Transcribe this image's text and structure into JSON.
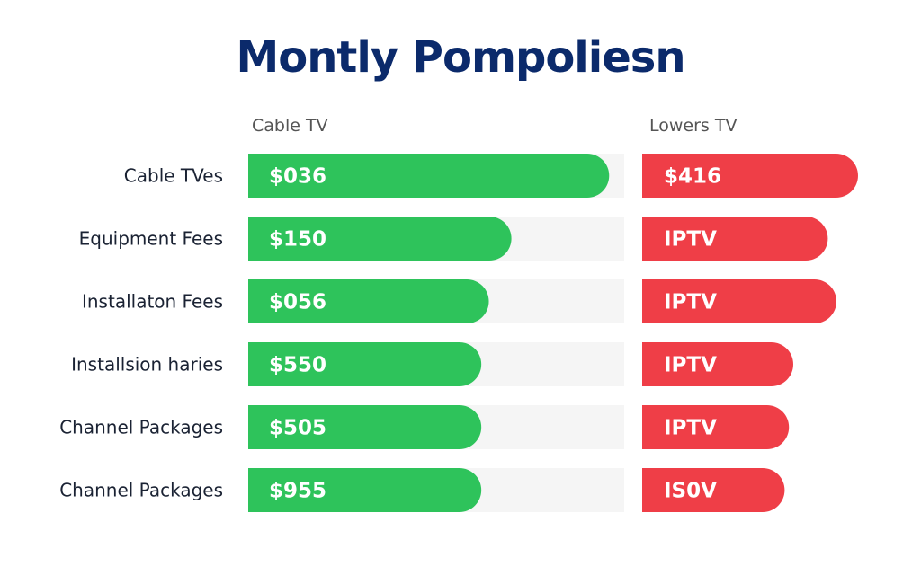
{
  "chart_data": {
    "type": "bar",
    "title": "Montly Pompoliesn",
    "series": [
      {
        "name": "Cable TV",
        "color": "#2ec35b",
        "track_color": "#f5f5f5",
        "values": [
          0.96,
          0.7,
          0.64,
          0.62,
          0.62,
          0.62
        ],
        "labels": [
          "$036",
          "$150",
          "$056",
          "$550",
          "$505",
          "$955"
        ]
      },
      {
        "name": "Lowers TV",
        "color": "#ef3e47",
        "values": [
          1.0,
          0.86,
          0.9,
          0.7,
          0.68,
          0.66
        ],
        "labels": [
          "$416",
          "IPTV",
          "IPTV",
          "IPTV",
          "IPTV",
          "IS0V"
        ]
      }
    ],
    "categories": [
      "Cable TVes",
      "Equipment Fees",
      "Installaton Fees",
      "Installsion haries",
      "Channel Packages",
      "Channel Packages"
    ],
    "colors": {
      "title": "#0b2a6b",
      "header": "#555555",
      "row_label": "#1a2233"
    }
  }
}
